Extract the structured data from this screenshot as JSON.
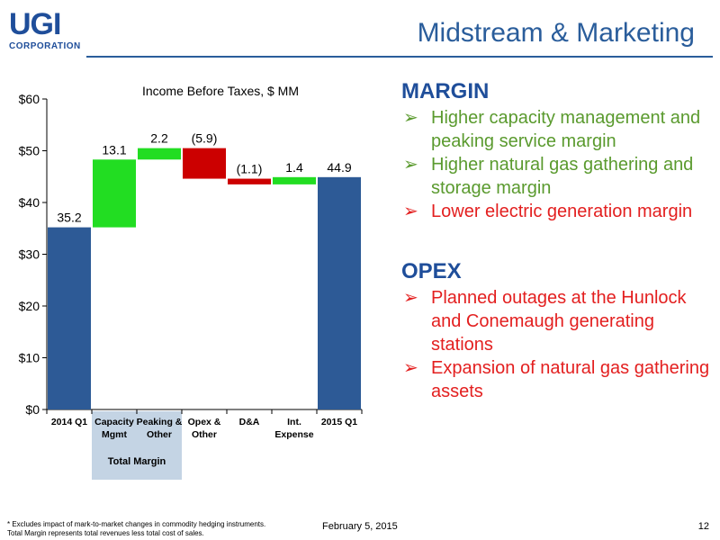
{
  "logo": {
    "main": "UGI",
    "sub": "CORPORATION"
  },
  "title": "Midstream & Marketing",
  "chart_data": {
    "type": "waterfall",
    "title": "Income Before Taxes, $ MM",
    "ylim": [
      0,
      60
    ],
    "yticks": [
      "$0",
      "$10",
      "$20",
      "$30",
      "$40",
      "$50",
      "$60"
    ],
    "ytick_values": [
      0,
      10,
      20,
      30,
      40,
      50,
      60
    ],
    "categories": [
      "2014 Q1",
      "Capacity Mgmt",
      "Peaking & Other",
      "Opex & Other",
      "D&A",
      "Int. Expense",
      "2015 Q1"
    ],
    "category_lines": [
      [
        "2014 Q1"
      ],
      [
        "Capacity",
        "Mgmt"
      ],
      [
        "Peaking &",
        "Other"
      ],
      [
        "Opex &",
        "Other"
      ],
      [
        "D&A"
      ],
      [
        "Int.",
        "Expense"
      ],
      [
        "2015 Q1"
      ]
    ],
    "values": [
      35.2,
      13.1,
      2.2,
      -5.9,
      -1.1,
      1.4,
      44.9
    ],
    "kinds": [
      "total",
      "delta",
      "delta",
      "delta",
      "delta",
      "delta",
      "total"
    ],
    "labels": [
      "35.2",
      "13.1",
      "2.2",
      "(5.9)",
      "(1.1)",
      "1.4",
      "44.9"
    ],
    "grid": false,
    "colors": {
      "total": "#2d5a96",
      "increase": "#22dd22",
      "decrease": "#cc0000"
    },
    "group_label": "Total Margin",
    "group_categories": [
      "Capacity Mgmt",
      "Peaking & Other"
    ],
    "group_color": "#c4d4e4"
  },
  "margin": {
    "heading": "MARGIN",
    "bullets": [
      {
        "text": "Higher capacity management and peaking service margin",
        "color": "#5a9a2e"
      },
      {
        "text": "Higher natural gas gathering and storage margin",
        "color": "#5a9a2e"
      },
      {
        "text": "Lower electric generation margin",
        "color": "#e31f1f"
      }
    ]
  },
  "opex": {
    "heading": "OPEX",
    "bullets": [
      {
        "text": "Planned outages at the Hunlock and Conemaugh generating stations",
        "color": "#e31f1f"
      },
      {
        "text": "Expansion of natural gas gathering assets",
        "color": "#e31f1f"
      }
    ]
  },
  "bullet_glyph": "➢",
  "footer": {
    "note_line1": "* Excludes impact of mark-to-market changes in commodity hedging instruments.",
    "note_line2": "Total Margin represents total revenues less total cost of sales.",
    "date": "February 5, 2015",
    "page": "12"
  }
}
